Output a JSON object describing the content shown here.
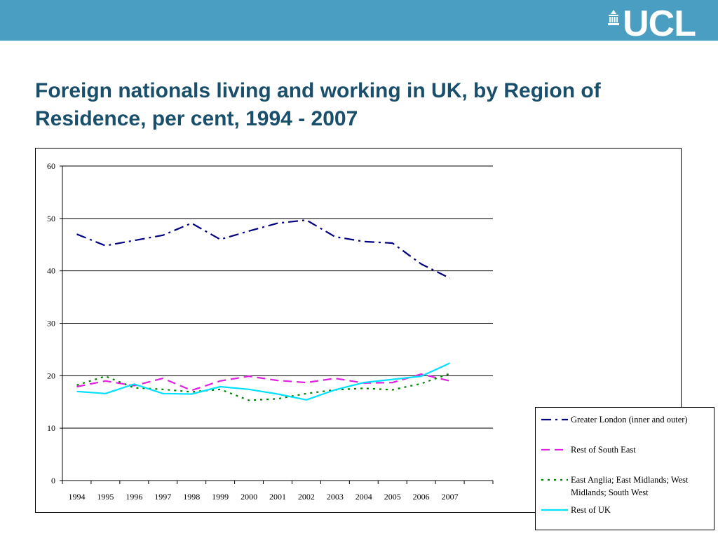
{
  "header": {
    "logo_text": "UCL",
    "logo_icon": "portico-icon",
    "bar_color": "#4a9ec1"
  },
  "slide": {
    "title": "Foreign nationals living and working in UK, by Region of Residence, per cent,  1994 - 2007"
  },
  "chart_data": {
    "type": "line",
    "title": "",
    "xlabel": "",
    "ylabel": "",
    "ylim": [
      0,
      60
    ],
    "yticks": [
      "0",
      "10",
      "20",
      "30",
      "40",
      "50",
      "60"
    ],
    "categories": [
      "1994",
      "1995",
      "1996",
      "1997",
      "1998",
      "1999",
      "2000",
      "2001",
      "2002",
      "2003",
      "2004",
      "2005",
      "2006",
      "2007"
    ],
    "grid": "horizontal major",
    "legend_position": "right",
    "series": [
      {
        "name": "Greater London (inner and outer)",
        "color": "#000080",
        "dash": "dash-dot",
        "values": [
          47,
          44.8,
          45.8,
          46.8,
          49.1,
          46.0,
          47.6,
          49.1,
          49.7,
          46.5,
          45.6,
          45.3,
          41.3,
          38.6
        ]
      },
      {
        "name": "Rest of South East",
        "color": "#e020e0",
        "dash": "dash",
        "values": [
          17.9,
          19.0,
          18.1,
          19.5,
          17.2,
          19.0,
          19.9,
          19.1,
          18.7,
          19.5,
          18.6,
          18.7,
          20.3,
          19.0
        ]
      },
      {
        "name": "East Anglia; East Midlands; West Midlands; South West",
        "color": "#008000",
        "dash": "dot",
        "values": [
          18.2,
          19.9,
          17.7,
          17.4,
          16.9,
          17.4,
          15.3,
          15.6,
          16.6,
          17.3,
          17.6,
          17.3,
          18.5,
          20.4
        ]
      },
      {
        "name": "Rest of UK",
        "color": "#00e0ff",
        "dash": "solid",
        "values": [
          17.0,
          16.6,
          18.4,
          16.6,
          16.5,
          17.9,
          17.4,
          16.5,
          15.4,
          17.3,
          18.7,
          19.3,
          19.9,
          22.4
        ]
      }
    ]
  }
}
